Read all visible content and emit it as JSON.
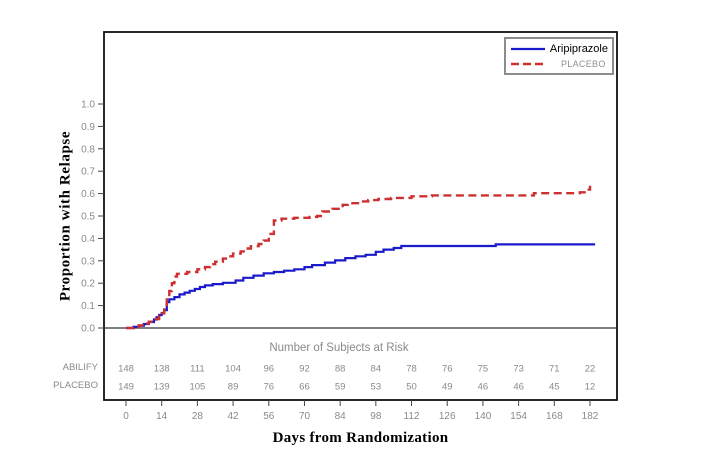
{
  "legend": {
    "items": [
      {
        "label": "Aripiprazole",
        "color": "#1a1acc",
        "line_style": "solid",
        "label_color": "#000000"
      },
      {
        "label": "PLACEBO",
        "color": "#cc3030",
        "line_style": "dashed",
        "label_color": "#909090"
      }
    ]
  },
  "chart_data": {
    "type": "line",
    "subtype": "kaplan-meier-step",
    "title": "",
    "xlabel": "Days from Randomization",
    "ylabel": "Proportion with Relapse",
    "x_ticks": [
      0,
      14,
      28,
      42,
      56,
      70,
      84,
      98,
      112,
      126,
      140,
      154,
      168,
      182
    ],
    "y_ticks": [
      "0.0",
      "0.1",
      "0.2",
      "0.3",
      "0.4",
      "0.5",
      "0.6",
      "0.7",
      "0.8",
      "0.9",
      "1.0"
    ],
    "xlim": [
      -9,
      193
    ],
    "ylim": [
      0,
      1.0
    ],
    "grid": false,
    "legend_position": "top-right",
    "frame_color": "#111111",
    "tick_label_color": "#8a8a8a",
    "series": [
      {
        "name": "Aripiprazole",
        "color": "#1a1acc",
        "dash": "solid",
        "points": [
          [
            0,
            0
          ],
          [
            3,
            0.005
          ],
          [
            5,
            0.01
          ],
          [
            7,
            0.018
          ],
          [
            9,
            0.027
          ],
          [
            11,
            0.038
          ],
          [
            12,
            0.048
          ],
          [
            13,
            0.058
          ],
          [
            14,
            0.067
          ],
          [
            15,
            0.08
          ],
          [
            16,
            0.115
          ],
          [
            17,
            0.128
          ],
          [
            19,
            0.138
          ],
          [
            21,
            0.15
          ],
          [
            23,
            0.158
          ],
          [
            25,
            0.166
          ],
          [
            27,
            0.174
          ],
          [
            29,
            0.183
          ],
          [
            31,
            0.19
          ],
          [
            34,
            0.196
          ],
          [
            38,
            0.202
          ],
          [
            43,
            0.212
          ],
          [
            46,
            0.224
          ],
          [
            50,
            0.234
          ],
          [
            54,
            0.244
          ],
          [
            58,
            0.25
          ],
          [
            62,
            0.256
          ],
          [
            66,
            0.262
          ],
          [
            70,
            0.272
          ],
          [
            73,
            0.281
          ],
          [
            78,
            0.292
          ],
          [
            82,
            0.302
          ],
          [
            86,
            0.312
          ],
          [
            90,
            0.32
          ],
          [
            94,
            0.327
          ],
          [
            98,
            0.34
          ],
          [
            101,
            0.35
          ],
          [
            105,
            0.357
          ],
          [
            108,
            0.366
          ],
          [
            145,
            0.373
          ],
          [
            184,
            0.373
          ]
        ]
      },
      {
        "name": "PLACEBO",
        "color": "#cc3030",
        "dash": "dashed",
        "points": [
          [
            0,
            0
          ],
          [
            3,
            0.005
          ],
          [
            5,
            0.012
          ],
          [
            7,
            0.02
          ],
          [
            9,
            0.028
          ],
          [
            11,
            0.04
          ],
          [
            13,
            0.055
          ],
          [
            14,
            0.065
          ],
          [
            15,
            0.09
          ],
          [
            16,
            0.135
          ],
          [
            17,
            0.165
          ],
          [
            18,
            0.2
          ],
          [
            19,
            0.23
          ],
          [
            20,
            0.242
          ],
          [
            24,
            0.25
          ],
          [
            28,
            0.262
          ],
          [
            31,
            0.272
          ],
          [
            33,
            0.285
          ],
          [
            35,
            0.296
          ],
          [
            38,
            0.31
          ],
          [
            40,
            0.32
          ],
          [
            42,
            0.332
          ],
          [
            45,
            0.342
          ],
          [
            47,
            0.355
          ],
          [
            49,
            0.365
          ],
          [
            52,
            0.375
          ],
          [
            54,
            0.39
          ],
          [
            56,
            0.42
          ],
          [
            58,
            0.48
          ],
          [
            61,
            0.488
          ],
          [
            66,
            0.492
          ],
          [
            72,
            0.496
          ],
          [
            75,
            0.5
          ],
          [
            77,
            0.52
          ],
          [
            81,
            0.532
          ],
          [
            85,
            0.55
          ],
          [
            87,
            0.557
          ],
          [
            91,
            0.565
          ],
          [
            95,
            0.571
          ],
          [
            99,
            0.576
          ],
          [
            104,
            0.581
          ],
          [
            112,
            0.588
          ],
          [
            120,
            0.592
          ],
          [
            160,
            0.602
          ],
          [
            178,
            0.606
          ],
          [
            181,
            0.618
          ],
          [
            182,
            0.635
          ]
        ]
      }
    ]
  },
  "risk_table": {
    "title": "Number of Subjects at Risk",
    "rows": [
      {
        "label": "ABILIFY",
        "counts": [
          148,
          138,
          111,
          104,
          96,
          92,
          88,
          84,
          78,
          76,
          75,
          73,
          71,
          22
        ]
      },
      {
        "label": "PLACEBO",
        "counts": [
          149,
          139,
          105,
          89,
          76,
          66,
          59,
          53,
          50,
          49,
          46,
          46,
          45,
          12
        ]
      }
    ]
  }
}
